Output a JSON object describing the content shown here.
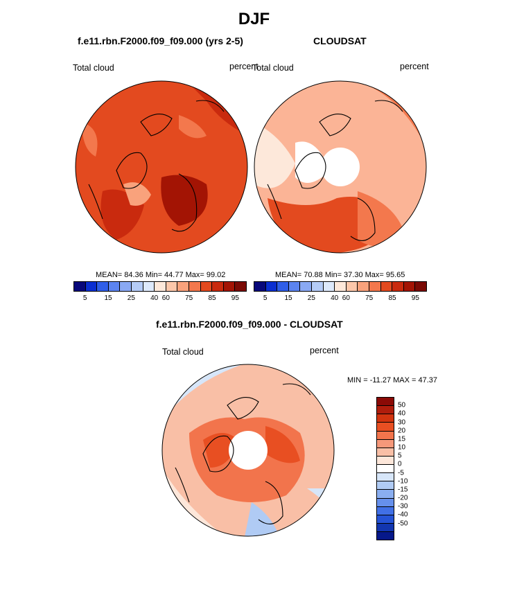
{
  "title": "DJF",
  "panels": [
    {
      "subtitle": "f.e11.rbn.F2000.f09_f09.000 (yrs 2-5)",
      "left_label": "Total cloud",
      "right_label": "percent",
      "stats": "MEAN=  84.36  Min=  44.77  Max=  99.02",
      "base_color": "#e34a1f"
    },
    {
      "subtitle": "CLOUDSAT",
      "left_label": "Total cloud",
      "right_label": "percent",
      "stats": "MEAN=  70.88  Min=  37.30  Max=  95.65",
      "base_color": "#fbb496"
    }
  ],
  "abs_colorbar": {
    "colors": [
      "#08087a",
      "#0b2fd1",
      "#2f5ee8",
      "#5c84f0",
      "#8aa9f3",
      "#b5ccf7",
      "#dde9fb",
      "#fde8da",
      "#fcc7aa",
      "#f9a27c",
      "#f3784d",
      "#e34a1f",
      "#c92a0e",
      "#a31404",
      "#7a0a04"
    ],
    "ticks": [
      "5",
      "15",
      "25",
      "40",
      "60",
      "75",
      "85",
      "95"
    ]
  },
  "diff_panel": {
    "subtitle": "f.e11.rbn.F2000.f09_f09.000 - CLOUDSAT",
    "left_label": "Total cloud",
    "right_label": "percent",
    "minmax": "MIN = -11.27 MAX =  47.37",
    "base_color": "#f9a27c",
    "colorbar": {
      "colors": [
        "#8b0a06",
        "#b01d0c",
        "#d2340f",
        "#e84f22",
        "#f2744c",
        "#f6987a",
        "#f9bfa6",
        "#fde7da",
        "#ffffff",
        "#d7e6f9",
        "#b0cbf4",
        "#8aaef0",
        "#6690ec",
        "#4170e6",
        "#2553d6",
        "#1236b0",
        "#06188a"
      ],
      "ticks": [
        "50",
        "40",
        "30",
        "20",
        "15",
        "10",
        "5",
        "0",
        "-5",
        "-10",
        "-15",
        "-20",
        "-30",
        "-40",
        "-50"
      ]
    }
  }
}
